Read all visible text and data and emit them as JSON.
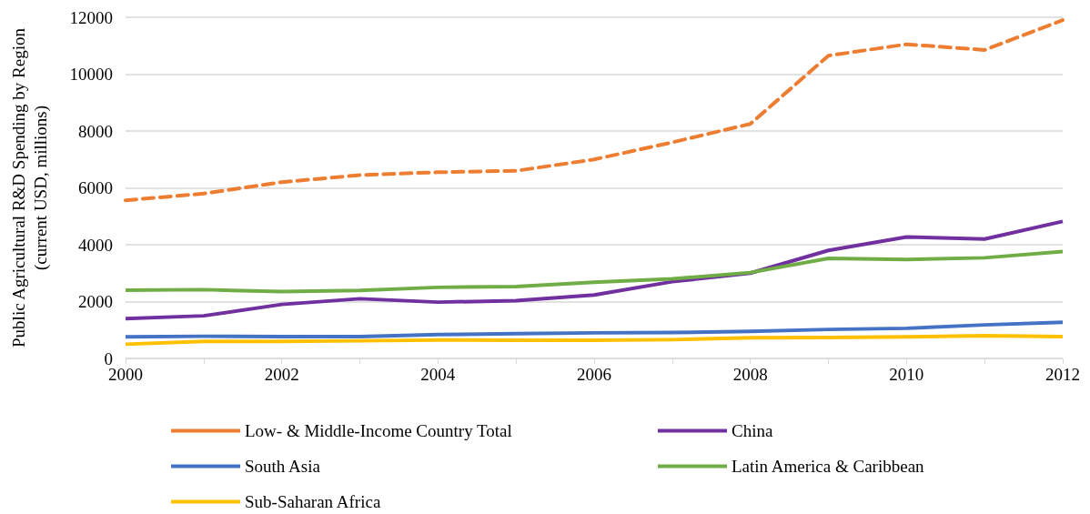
{
  "chart_data": {
    "type": "line",
    "ylabel": "Public Agricultural R&D Spending by Region\n(current USD, millions)",
    "x": [
      2000,
      2001,
      2002,
      2003,
      2004,
      2005,
      2006,
      2007,
      2008,
      2009,
      2010,
      2011,
      2012
    ],
    "series": [
      {
        "name": "Low- & Middle-Income Country Total",
        "color": "#ed7d31",
        "line_style": "dashed",
        "values": [
          5560,
          5800,
          6200,
          6450,
          6550,
          6600,
          7000,
          7600,
          8250,
          10650,
          11050,
          10850,
          11900
        ]
      },
      {
        "name": "China",
        "color": "#7030a0",
        "values": [
          1400,
          1500,
          1900,
          2100,
          1980,
          2030,
          2230,
          2700,
          3000,
          3800,
          4270,
          4200,
          4820
        ]
      },
      {
        "name": "South Asia",
        "color": "#4472c4",
        "values": [
          760,
          780,
          770,
          770,
          840,
          870,
          900,
          910,
          950,
          1020,
          1060,
          1180,
          1270
        ]
      },
      {
        "name": "Latin America & Caribbean",
        "color": "#70ad47",
        "values": [
          2400,
          2420,
          2350,
          2390,
          2500,
          2530,
          2680,
          2800,
          3020,
          3520,
          3480,
          3540,
          3760
        ]
      },
      {
        "name": "Sub-Saharan Africa",
        "color": "#ffc000",
        "values": [
          500,
          600,
          600,
          620,
          650,
          640,
          640,
          660,
          730,
          740,
          760,
          800,
          770
        ]
      }
    ],
    "xlim": [
      2000,
      2012
    ],
    "xticks": [
      2000,
      {
        "value": 2001,
        "label": null
      },
      2002,
      {
        "value": 2003,
        "label": null
      },
      2004,
      {
        "value": 2005,
        "label": null
      },
      2006,
      {
        "value": 2007,
        "label": null
      },
      2008,
      {
        "value": 2009,
        "label": null
      },
      2010,
      {
        "value": 2011,
        "label": null
      },
      2012
    ],
    "ylim": [
      0,
      12000
    ],
    "yticks": [
      0,
      2000,
      4000,
      6000,
      8000,
      10000,
      12000
    ],
    "grid": "y",
    "legend": "bottom",
    "marker": "none",
    "line_style": "solid"
  }
}
